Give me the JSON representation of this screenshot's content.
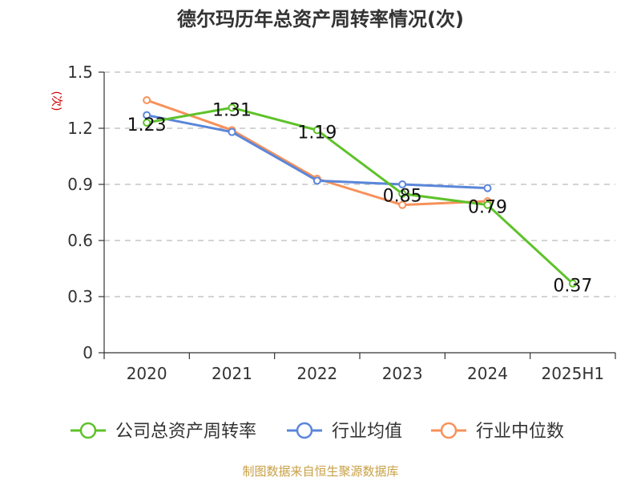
{
  "chart_data": {
    "type": "line",
    "title": "德尔玛历年总资产周转率情况(次)",
    "ylabel": "(次)",
    "categories": [
      "2020",
      "2021",
      "2022",
      "2023",
      "2024",
      "2025H1"
    ],
    "yticks": [
      "0",
      "0.3",
      "0.6",
      "0.9",
      "1.2",
      "1.5"
    ],
    "ylim": [
      0,
      1.5
    ],
    "grid": true,
    "legend": "bottom",
    "series": [
      {
        "name": "公司总资产周转率",
        "color": "#5ec22a",
        "values": [
          1.23,
          1.31,
          1.19,
          0.85,
          0.79,
          0.37
        ],
        "labels": [
          "1.23",
          "1.31",
          "1.19",
          "0.85",
          "0.79",
          "0.37"
        ]
      },
      {
        "name": "行业均值",
        "color": "#5b86d9",
        "values": [
          1.27,
          1.18,
          0.92,
          0.9,
          0.88,
          null
        ]
      },
      {
        "name": "行业中位数",
        "color": "#f7915a",
        "values": [
          1.35,
          1.19,
          0.93,
          0.79,
          0.81,
          null
        ]
      }
    ]
  },
  "footer": {
    "source": "制图数据来自恒生聚源数据库"
  }
}
